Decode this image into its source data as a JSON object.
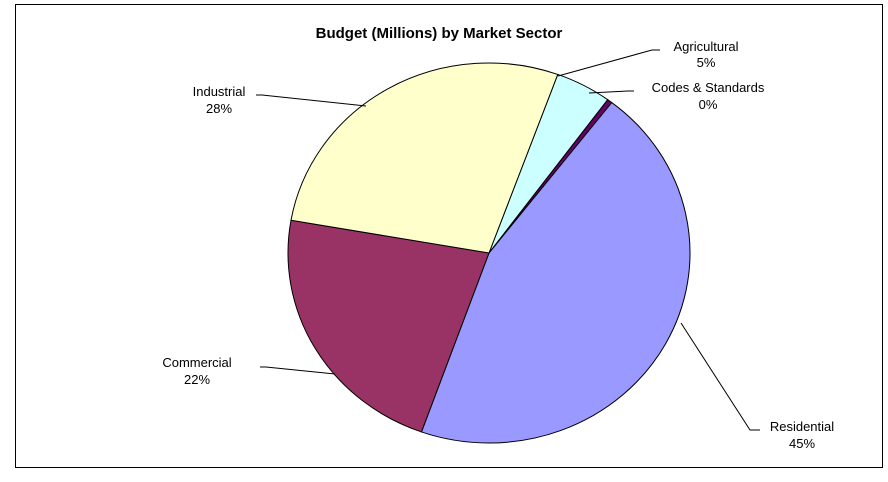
{
  "chart_data": {
    "type": "pie",
    "title": "Budget (Millions) by Market Sector",
    "start_angle_deg": 70,
    "direction": "clockwise",
    "slices": [
      {
        "name": "Agricultural",
        "percent_label": "5%",
        "value": 4.5,
        "color": "#ccffff"
      },
      {
        "name": "Codes & Standards",
        "percent_label": "0%",
        "value": 0.4,
        "color": "#660066"
      },
      {
        "name": "Residential",
        "percent_label": "45%",
        "value": 45.0,
        "color": "#9999ff"
      },
      {
        "name": "Commercial",
        "percent_label": "22%",
        "value": 22.3,
        "color": "#993366"
      },
      {
        "name": "Industrial",
        "percent_label": "28%",
        "value": 27.8,
        "color": "#ffffcc"
      }
    ]
  }
}
